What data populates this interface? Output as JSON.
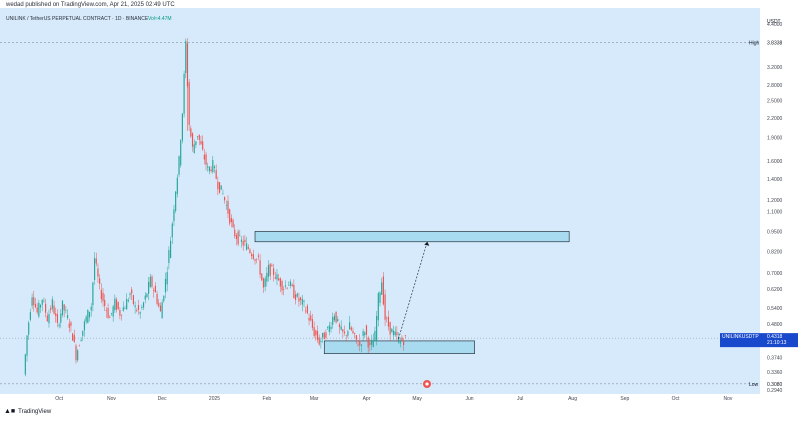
{
  "header": {
    "published": "wedad published on TradingView.com, Apr 21, 2025 02:49 UTC"
  },
  "chart_title": "UNILINK / TetherUS PERPETUAL CONTRACT · 1D · BINANCE",
  "chart_title_suffix": "Vol≈4.47M",
  "currency_label": "USDT",
  "price_tag": {
    "symbol": "UNILINKUSDTP",
    "price": "0.4318",
    "countdown": "21:10:13"
  },
  "high_label": "High",
  "high_value": "3.8338",
  "low_label": "Low",
  "low_value": "0.3080",
  "brand": "TradingView",
  "chart_data": {
    "type": "candlestick",
    "title": "UNILINK / TetherUS PERPETUAL CONTRACT · 1D · BINANCE",
    "y_scale": "log",
    "ylim": [
      0.29,
      4.6
    ],
    "y_ticks": [
      "4.4000",
      "3.2000",
      "2.8000",
      "2.5000",
      "2.2000",
      "1.9000",
      "1.6000",
      "1.4000",
      "1.2000",
      "1.1000",
      "0.9500",
      "0.8200",
      "0.7000",
      "0.6200",
      "0.5400",
      "0.4800",
      "0.3740",
      "0.3360",
      "0.2940"
    ],
    "y_tick_values": [
      4.4,
      3.2,
      2.8,
      2.5,
      2.2,
      1.9,
      1.6,
      1.4,
      1.2,
      1.1,
      0.95,
      0.82,
      0.7,
      0.62,
      0.54,
      0.48,
      0.374,
      0.336,
      0.294
    ],
    "x_ticks": [
      "Oct",
      "Nov",
      "Dec",
      "2025",
      "Feb",
      "Mar",
      "Apr",
      "May",
      "Jun",
      "Jul",
      "Aug",
      "Sep",
      "Oct",
      "Nov"
    ],
    "x_tick_index": [
      20,
      51,
      81,
      112,
      143,
      171,
      202,
      232,
      263,
      293,
      324,
      355,
      385,
      416
    ],
    "x_range": [
      -15,
      435
    ],
    "high": 3.8338,
    "low": 0.308,
    "last": 0.4318,
    "path_points": [
      [
        0,
        0.33
      ],
      [
        2,
        0.44
      ],
      [
        5,
        0.6
      ],
      [
        8,
        0.52
      ],
      [
        11,
        0.58
      ],
      [
        14,
        0.5
      ],
      [
        17,
        0.56
      ],
      [
        20,
        0.47
      ],
      [
        23,
        0.55
      ],
      [
        26,
        0.5
      ],
      [
        29,
        0.44
      ],
      [
        31,
        0.38
      ],
      [
        34,
        0.44
      ],
      [
        37,
        0.5
      ],
      [
        40,
        0.55
      ],
      [
        42,
        0.78
      ],
      [
        45,
        0.62
      ],
      [
        48,
        0.55
      ],
      [
        51,
        0.5
      ],
      [
        54,
        0.56
      ],
      [
        57,
        0.52
      ],
      [
        60,
        0.55
      ],
      [
        63,
        0.6
      ],
      [
        66,
        0.54
      ],
      [
        69,
        0.52
      ],
      [
        72,
        0.58
      ],
      [
        75,
        0.66
      ],
      [
        78,
        0.6
      ],
      [
        81,
        0.52
      ],
      [
        84,
        0.66
      ],
      [
        87,
        0.9
      ],
      [
        90,
        1.3
      ],
      [
        92,
        1.6
      ],
      [
        94,
        2.3
      ],
      [
        96,
        3.83
      ],
      [
        98,
        2.1
      ],
      [
        100,
        1.75
      ],
      [
        103,
        1.95
      ],
      [
        106,
        1.7
      ],
      [
        109,
        1.5
      ],
      [
        112,
        1.55
      ],
      [
        115,
        1.35
      ],
      [
        118,
        1.25
      ],
      [
        121,
        1.1
      ],
      [
        124,
        0.95
      ],
      [
        127,
        0.9
      ],
      [
        130,
        0.87
      ],
      [
        133,
        0.84
      ],
      [
        136,
        0.8
      ],
      [
        139,
        0.76
      ],
      [
        142,
        0.62
      ],
      [
        145,
        0.72
      ],
      [
        148,
        0.7
      ],
      [
        151,
        0.66
      ],
      [
        154,
        0.63
      ],
      [
        157,
        0.65
      ],
      [
        160,
        0.6
      ],
      [
        163,
        0.57
      ],
      [
        166,
        0.55
      ],
      [
        169,
        0.5
      ],
      [
        172,
        0.45
      ],
      [
        175,
        0.42
      ],
      [
        178,
        0.44
      ],
      [
        181,
        0.47
      ],
      [
        184,
        0.52
      ],
      [
        187,
        0.46
      ],
      [
        190,
        0.44
      ],
      [
        193,
        0.47
      ],
      [
        196,
        0.43
      ],
      [
        199,
        0.41
      ],
      [
        202,
        0.46
      ],
      [
        205,
        0.4
      ],
      [
        208,
        0.44
      ],
      [
        210,
        0.58
      ],
      [
        212,
        0.66
      ],
      [
        214,
        0.5
      ],
      [
        217,
        0.46
      ],
      [
        220,
        0.44
      ],
      [
        223,
        0.42
      ],
      [
        226,
        0.43
      ]
    ],
    "annotations": {
      "upper_zone": {
        "x0": 136,
        "x1": 322,
        "y_low": 0.88,
        "y_high": 0.95
      },
      "lower_zone": {
        "x0": 177,
        "x1": 266,
        "y_low": 0.385,
        "y_high": 0.423
      },
      "arrow": {
        "from": [
          221,
          0.43
        ],
        "to": [
          238,
          0.88
        ]
      }
    },
    "colors": {
      "up": "#26a69a",
      "down": "#ef5350",
      "background": "#d5ebfc",
      "zone": "#a9dbf0",
      "line": "#1e88e5"
    }
  }
}
